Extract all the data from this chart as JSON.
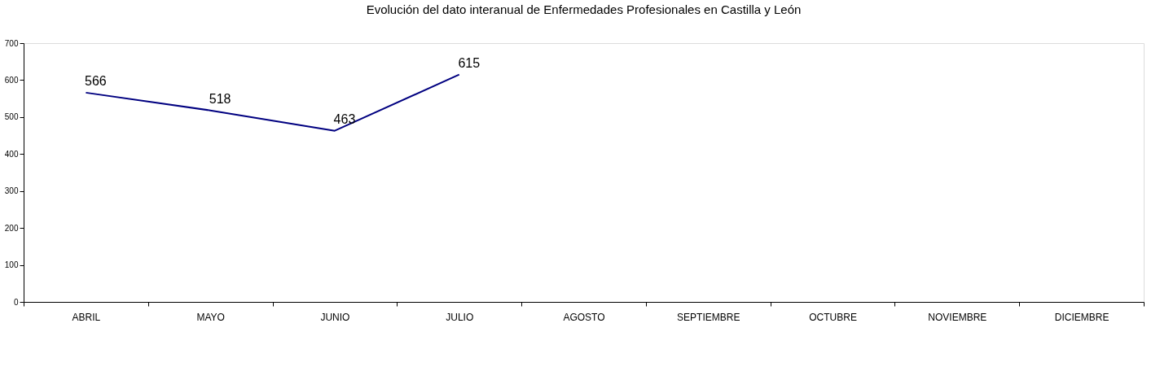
{
  "chart_data": {
    "type": "line",
    "title": "Evolución del dato interanual de Enfermedades Profesionales en Castilla y León",
    "categories": [
      "ABRIL",
      "MAYO",
      "JUNIO",
      "JULIO",
      "AGOSTO",
      "SEPTIEMBRE",
      "OCTUBRE",
      "NOVIEMBRE",
      "DICIEMBRE"
    ],
    "series": [
      {
        "color": "#000080",
        "values": [
          566,
          518,
          463,
          615,
          null,
          null,
          null,
          null,
          null
        ]
      }
    ],
    "ylim": [
      0,
      700
    ],
    "yticks": [
      0,
      100,
      200,
      300,
      400,
      500,
      600,
      700
    ],
    "data_labels": true,
    "grid": false,
    "legend": false,
    "marker": "none"
  }
}
